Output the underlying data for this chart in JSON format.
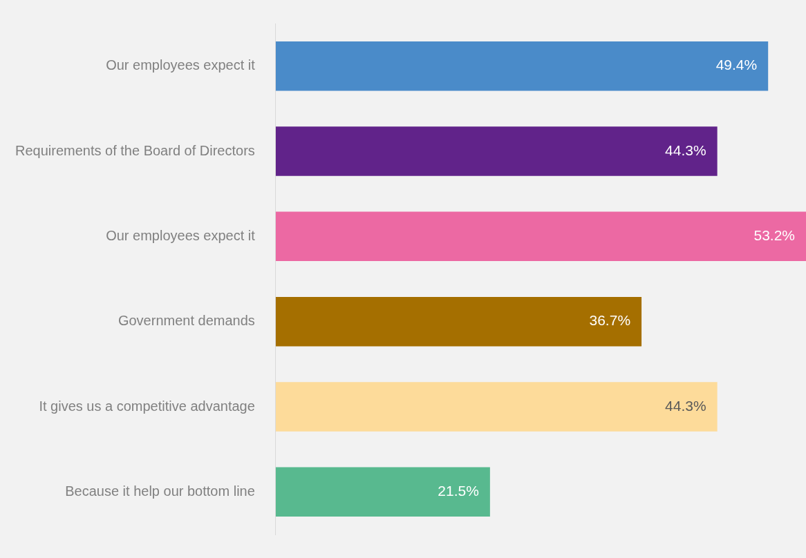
{
  "chart_data": {
    "type": "bar",
    "orientation": "horizontal",
    "categories": [
      "Our employees expect it",
      "Requirements of the Board of Directors",
      "Our employees expect it",
      "Government demands",
      "It gives us a competitive advantage",
      "Because it help our bottom line"
    ],
    "values": [
      49.4,
      44.3,
      53.2,
      36.7,
      44.3,
      21.5
    ],
    "colors": [
      "#4a8bc9",
      "#61238a",
      "#ec69a3",
      "#a56f00",
      "#fddb9a",
      "#58b98f"
    ],
    "value_labels": [
      "49.4%",
      "44.3%",
      "53.2%",
      "36.7%",
      "44.3%",
      "21.5%"
    ],
    "legend": false
  }
}
